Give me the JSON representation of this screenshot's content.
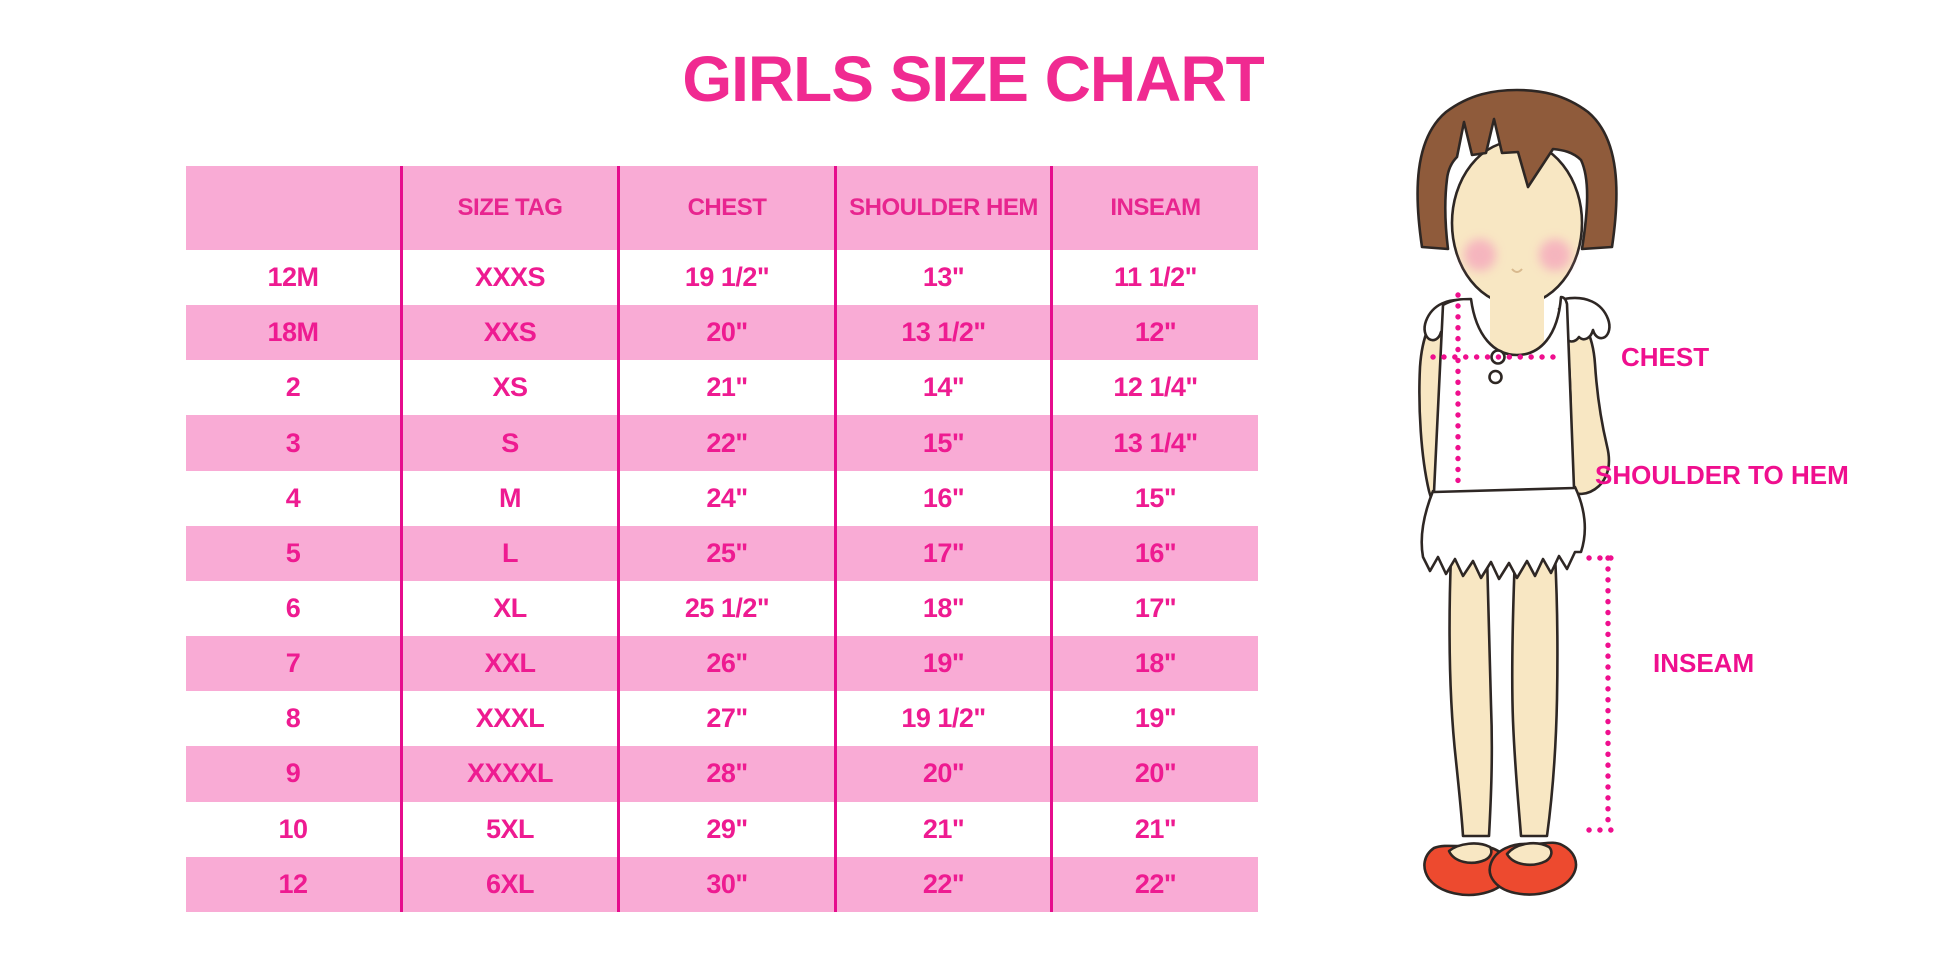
{
  "page": {
    "title": "GIRLS SIZE CHART"
  },
  "colors": {
    "accent_magenta": "#ee1b91",
    "row_pink": "#f9abd5",
    "grid_line": "#e60d8d",
    "title_pink": "#f02a91",
    "label_magenta": "#ef0f8e",
    "skin": "#f8e7c3",
    "hair_brown": "#8f5b3b",
    "shoe_red": "#ed4a2f",
    "blush": "#f5a9bd",
    "outline": "#2e2724"
  },
  "table": {
    "columns": [
      "",
      "SIZE TAG",
      "CHEST",
      "SHOULDER HEM",
      "INSEAM"
    ],
    "rows": [
      {
        "size": "12M",
        "size_tag": "XXXS",
        "chest": "19 1/2\"",
        "shoulder_hem": "13\"",
        "inseam": "11 1/2\""
      },
      {
        "size": "18M",
        "size_tag": "XXS",
        "chest": "20\"",
        "shoulder_hem": "13 1/2\"",
        "inseam": "12\""
      },
      {
        "size": "2",
        "size_tag": "XS",
        "chest": "21\"",
        "shoulder_hem": "14\"",
        "inseam": "12 1/4\""
      },
      {
        "size": "3",
        "size_tag": "S",
        "chest": "22\"",
        "shoulder_hem": "15\"",
        "inseam": "13 1/4\""
      },
      {
        "size": "4",
        "size_tag": "M",
        "chest": "24\"",
        "shoulder_hem": "16\"",
        "inseam": "15\""
      },
      {
        "size": "5",
        "size_tag": "L",
        "chest": "25\"",
        "shoulder_hem": "17\"",
        "inseam": "16\""
      },
      {
        "size": "6",
        "size_tag": "XL",
        "chest": "25 1/2\"",
        "shoulder_hem": "18\"",
        "inseam": "17\""
      },
      {
        "size": "7",
        "size_tag": "XXL",
        "chest": "26\"",
        "shoulder_hem": "19\"",
        "inseam": "18\""
      },
      {
        "size": "8",
        "size_tag": "XXXL",
        "chest": "27\"",
        "shoulder_hem": "19 1/2\"",
        "inseam": "19\""
      },
      {
        "size": "9",
        "size_tag": "XXXXL",
        "chest": "28\"",
        "shoulder_hem": "20\"",
        "inseam": "20\""
      },
      {
        "size": "10",
        "size_tag": "5XL",
        "chest": "29\"",
        "shoulder_hem": "21\"",
        "inseam": "21\""
      },
      {
        "size": "12",
        "size_tag": "6XL",
        "chest": "30\"",
        "shoulder_hem": "22\"",
        "inseam": "22\""
      }
    ]
  },
  "figure": {
    "labels": {
      "chest": "CHEST",
      "shoulder_to_hem": "SHOULDER TO HEM",
      "inseam": "INSEAM"
    }
  }
}
